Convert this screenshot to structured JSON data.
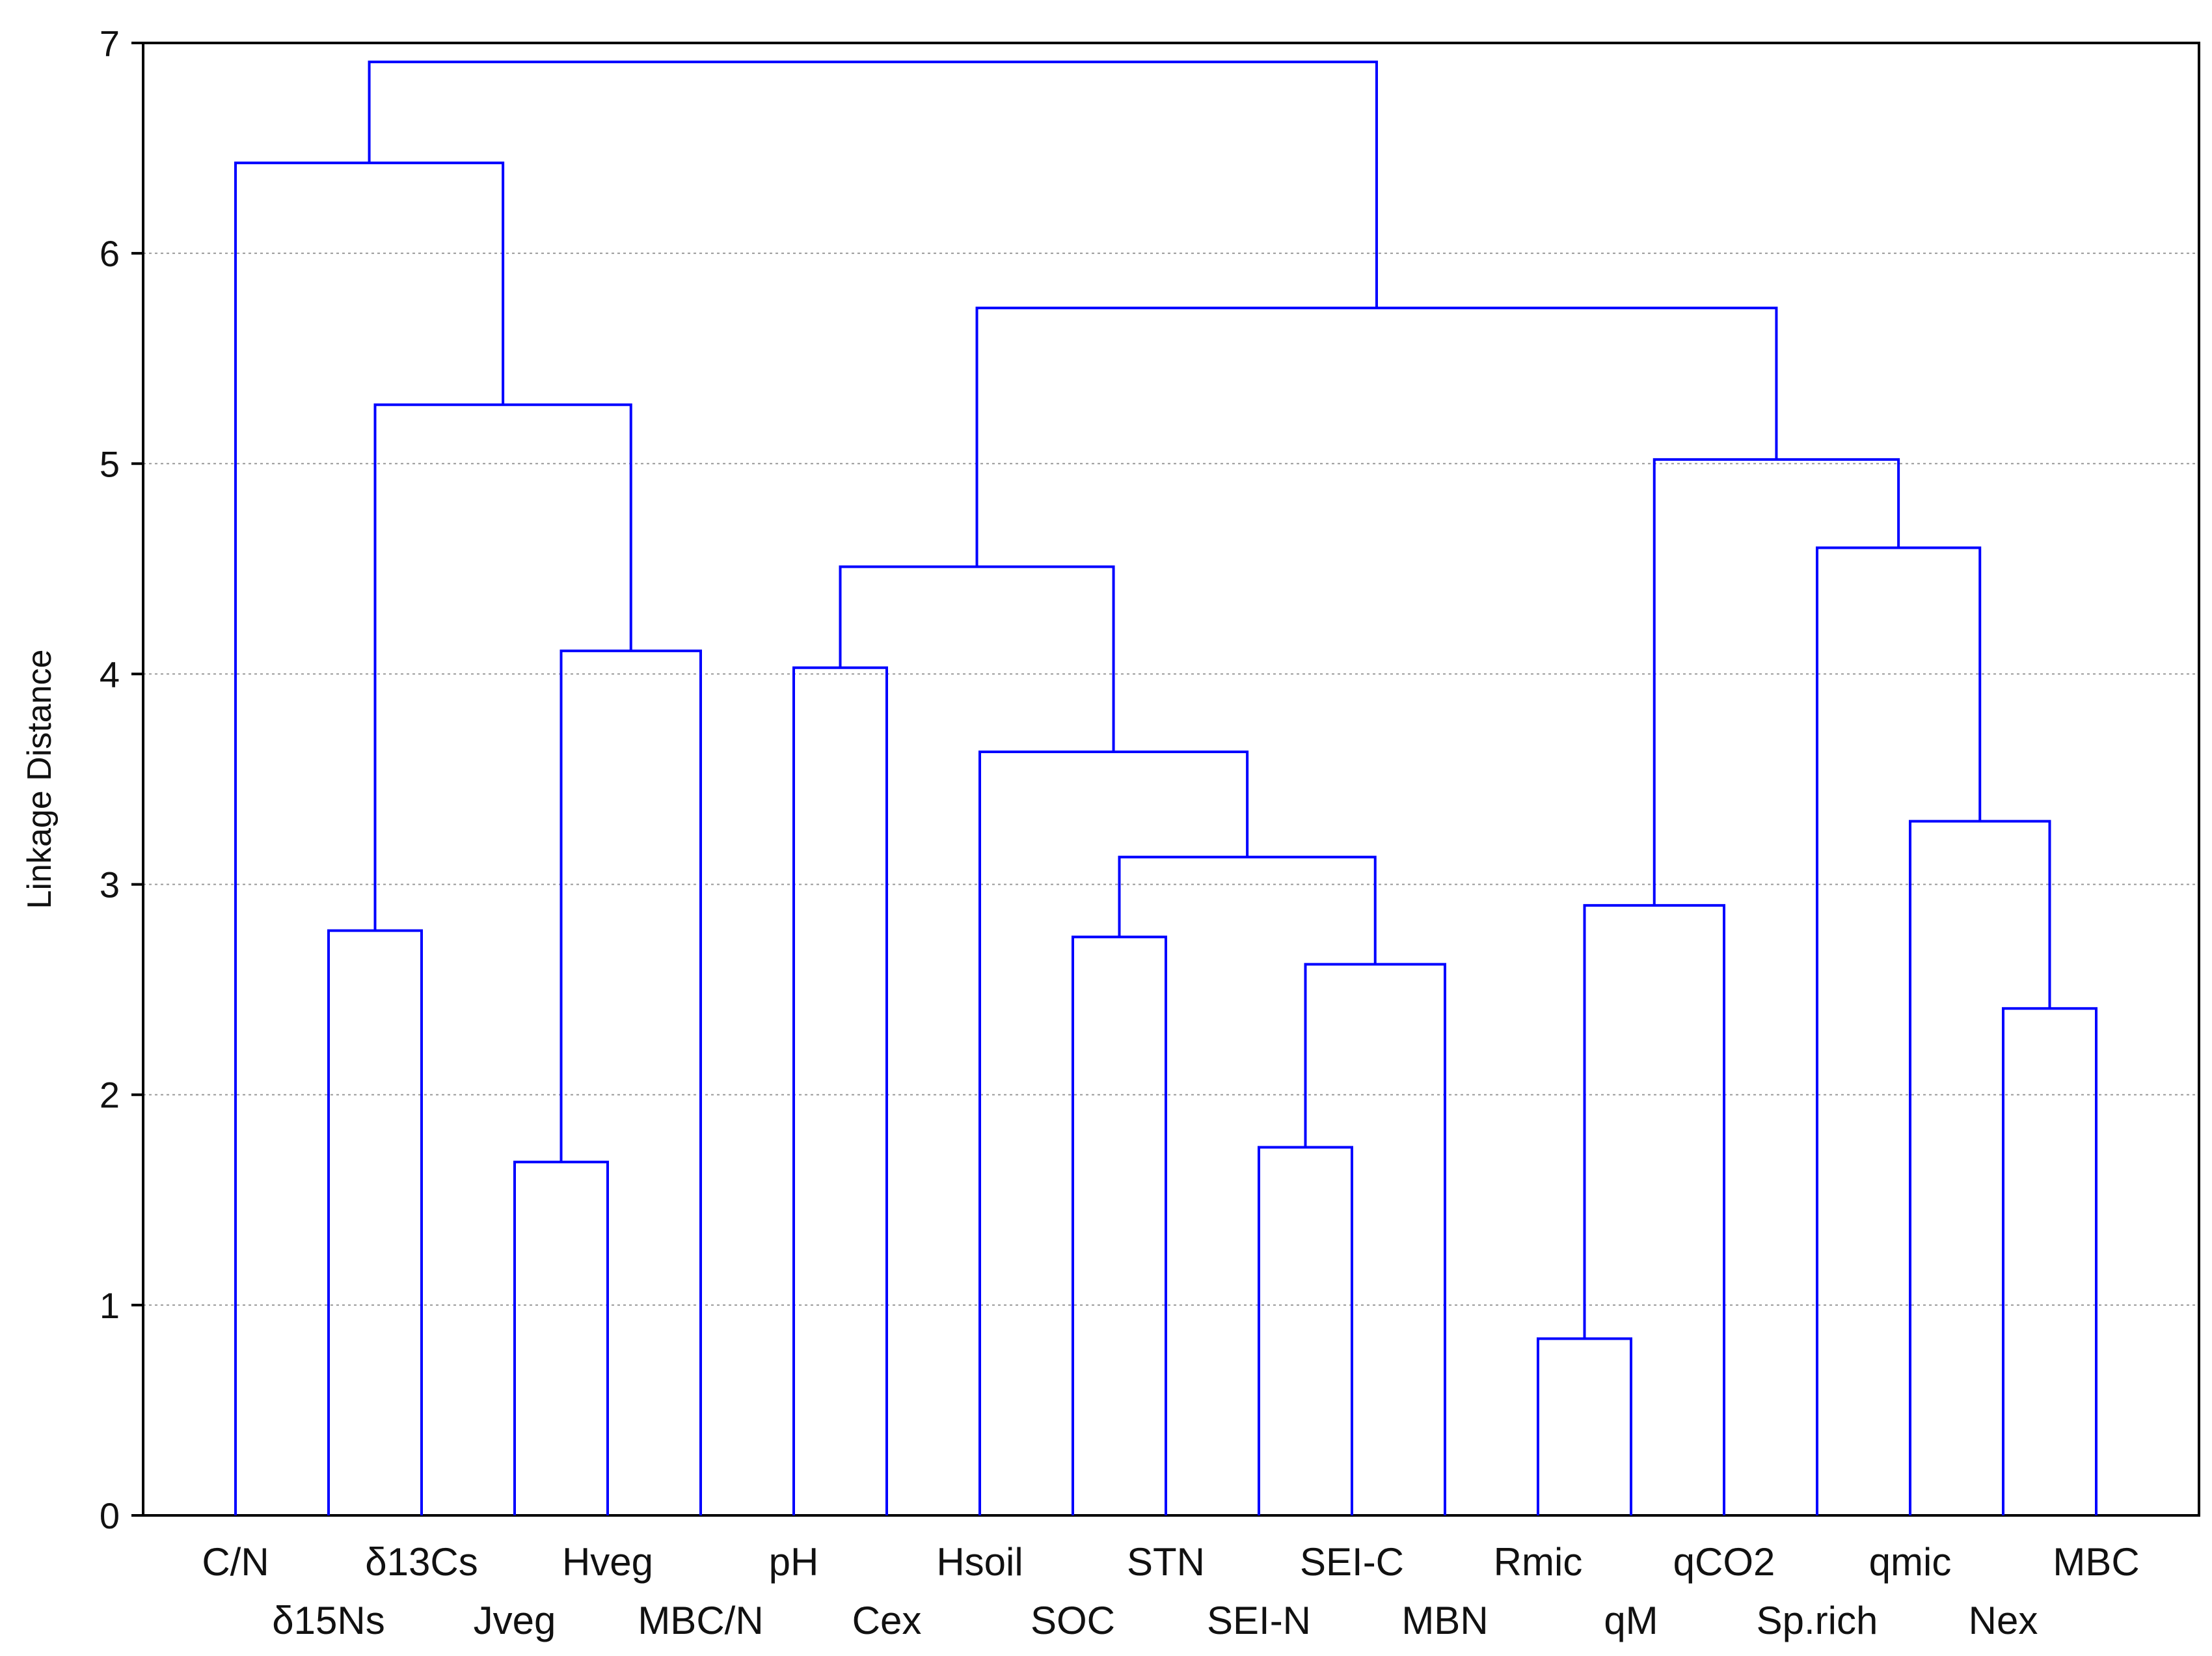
{
  "chart_data": {
    "type": "dendrogram",
    "ylabel": "Linkage Distance",
    "ylim": [
      0,
      7
    ],
    "yticks": [
      0,
      1,
      2,
      3,
      4,
      5,
      6,
      7
    ],
    "grid": "horizontal dotted",
    "line_color": "#0000ff",
    "leaves": [
      "C/N",
      "δ15Ns",
      "δ13Cs",
      "Jveg",
      "Hveg",
      "MBC/N",
      "pH",
      "Cex",
      "Hsoil",
      "SOC",
      "STN",
      "SEI-N",
      "SEI-C",
      "MBN",
      "Rmic",
      "qM",
      "qCO2",
      "Sp.rich",
      "qmic",
      "Nex",
      "MBC"
    ],
    "merges": [
      {
        "left": "Rmic",
        "right": "qM",
        "height": 0.84
      },
      {
        "left": "Jveg",
        "right": "Hveg",
        "height": 1.68
      },
      {
        "left": "SEI-N",
        "right": "SEI-C",
        "height": 1.75
      },
      {
        "left": "Nex",
        "right": "MBC",
        "height": 2.41
      },
      {
        "left": "SEI-N|SEI-C",
        "right": "MBN",
        "height": 2.62
      },
      {
        "left": "SOC",
        "right": "STN",
        "height": 2.75
      },
      {
        "left": "δ15Ns",
        "right": "δ13Cs",
        "height": 2.78
      },
      {
        "left": "Rmic|qM",
        "right": "qCO2",
        "height": 2.9
      },
      {
        "left": "SOC|STN",
        "right": "SEI-N|SEI-C|MBN",
        "height": 3.13
      },
      {
        "left": "qmic",
        "right": "Nex|MBC",
        "height": 3.3
      },
      {
        "left": "Hsoil",
        "right": "SOC|STN|SEI-N|SEI-C|MBN",
        "height": 3.63
      },
      {
        "left": "pH",
        "right": "Cex",
        "height": 4.03
      },
      {
        "left": "Jveg|Hveg",
        "right": "MBC/N",
        "height": 4.11
      },
      {
        "left": "pH|Cex",
        "right": "Hsoil|SOC|STN|SEI-N|SEI-C|MBN",
        "height": 4.51
      },
      {
        "left": "Sp.rich",
        "right": "qmic|Nex|MBC",
        "height": 4.6
      },
      {
        "left": "Rmic|qM|qCO2",
        "right": "Sp.rich|qmic|Nex|MBC",
        "height": 5.02
      },
      {
        "left": "δ15Ns|δ13Cs",
        "right": "Jveg|Hveg|MBC/N",
        "height": 5.28
      },
      {
        "left": "pH|Cex|Hsoil|SOC|STN|SEI-N|SEI-C|MBN",
        "right": "Rmic|qM|qCO2|Sp.rich|qmic|Nex|MBC",
        "height": 5.74
      },
      {
        "left": "C/N",
        "right": "δ15Ns|δ13Cs|Jveg|Hveg|MBC/N",
        "height": 6.43
      },
      {
        "left": "C/N|δ15Ns|δ13Cs|Jveg|Hveg|MBC/N",
        "right": "pH|Cex|Hsoil|SOC|STN|SEI-N|SEI-C|MBN|Rmic|qM|qCO2|Sp.rich|qmic|Nex|MBC",
        "height": 6.91
      }
    ]
  }
}
